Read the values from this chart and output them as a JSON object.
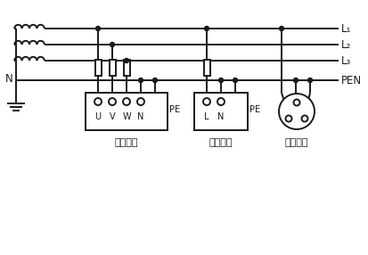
{
  "bg_color": "#ffffff",
  "line_color": "#1a1a1a",
  "line_width": 1.4,
  "fig_width": 4.13,
  "fig_height": 2.86,
  "dpi": 100,
  "labels": {
    "L1": "L₁",
    "L2": "L₂",
    "L3": "L₃",
    "PEN": "PEN",
    "N": "N",
    "PE_three": "PE",
    "PE_single": "PE",
    "U": "U",
    "V": "V",
    "W": "W",
    "N_three": "N",
    "L_single": "L",
    "N_single": "N",
    "three_phase": "三相设备",
    "single_phase": "单相设备",
    "single_socket": "单相插座"
  }
}
